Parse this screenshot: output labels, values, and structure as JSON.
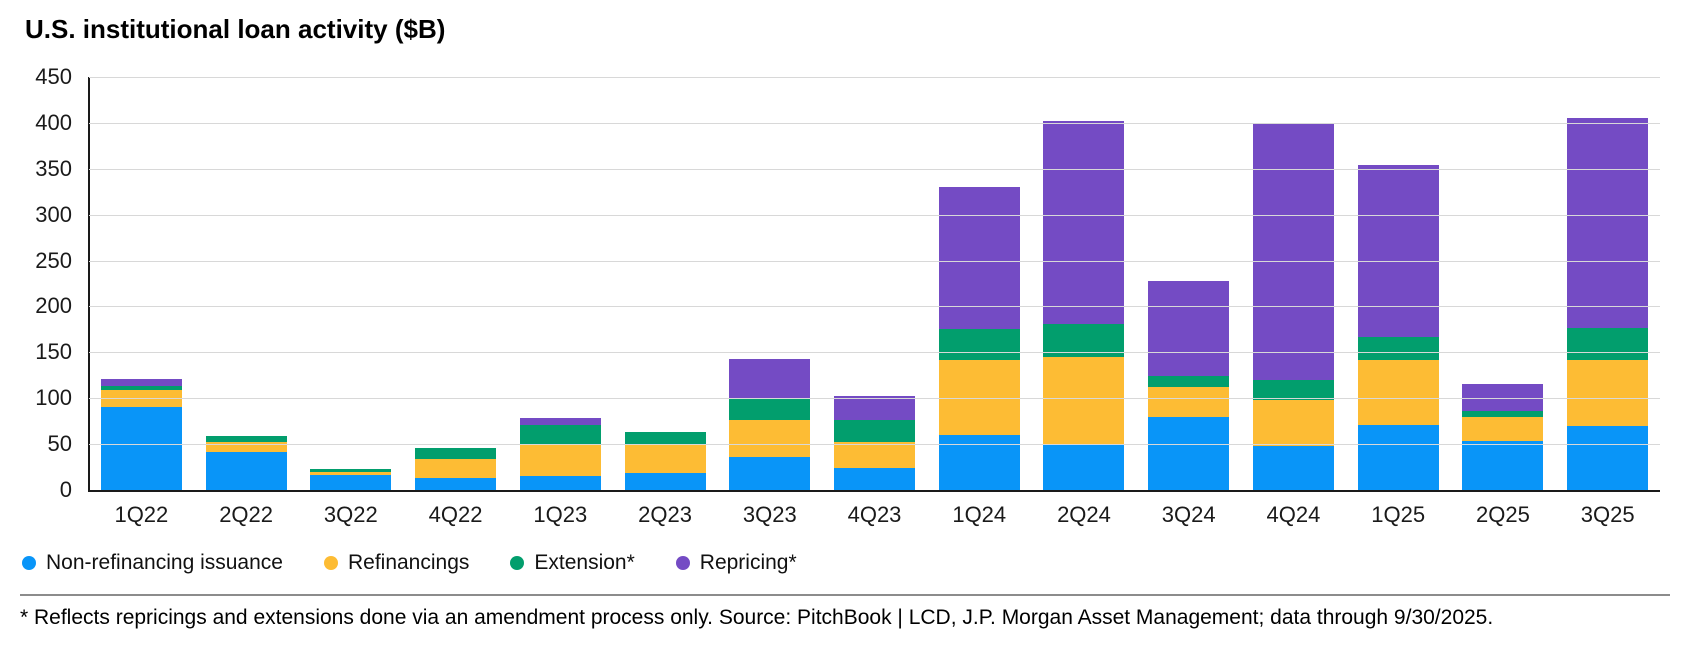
{
  "header": {
    "title": "U.S. institutional loan activity ($B)"
  },
  "chart_data": {
    "type": "bar",
    "stacked": true,
    "title": "U.S. institutional loan activity ($B)",
    "xlabel": "",
    "ylabel": "",
    "ylim": [
      0,
      450
    ],
    "yticks": [
      450,
      400,
      350,
      300,
      250,
      200,
      150,
      100,
      50,
      0
    ],
    "grid": "horizontal",
    "legend_position": "bottom-left",
    "categories": [
      "1Q22",
      "2Q22",
      "3Q22",
      "4Q22",
      "1Q23",
      "2Q23",
      "3Q23",
      "4Q23",
      "1Q24",
      "2Q24",
      "3Q24",
      "4Q24",
      "1Q25",
      "2Q25",
      "3Q25"
    ],
    "series": [
      {
        "name": "Non-refinancing issuance",
        "color": "#0995f8",
        "values": [
          90,
          41,
          16,
          13,
          15,
          18,
          36,
          24,
          60,
          49,
          80,
          48,
          71,
          53,
          70
        ]
      },
      {
        "name": "Refinancings",
        "color": "#fdbc34",
        "values": [
          19,
          11,
          4,
          21,
          35,
          32,
          40,
          28,
          82,
          96,
          32,
          50,
          71,
          27,
          72
        ]
      },
      {
        "name": "Extension*",
        "color": "#029e6d",
        "values": [
          4,
          7,
          3,
          12,
          21,
          13,
          23,
          24,
          33,
          36,
          12,
          22,
          25,
          6,
          34
        ]
      },
      {
        "name": "Repricing*",
        "color": "#744bc4",
        "values": [
          8,
          0,
          0,
          0,
          7,
          0,
          44,
          27,
          155,
          221,
          104,
          280,
          187,
          29,
          229
        ]
      }
    ],
    "totals": [
      121,
      59,
      23,
      46,
      78,
      63,
      143,
      103,
      330,
      402,
      228,
      400,
      354,
      115,
      405
    ]
  },
  "colors": {
    "axis": "#1a1a1a",
    "gridline": "#d8d8d8",
    "divider": "#8c8c8c"
  },
  "footnote": {
    "text": "* Reflects repricings and extensions done via an amendment process only. Source: PitchBook | LCD, J.P. Morgan Asset Management; data through 9/30/2025."
  }
}
